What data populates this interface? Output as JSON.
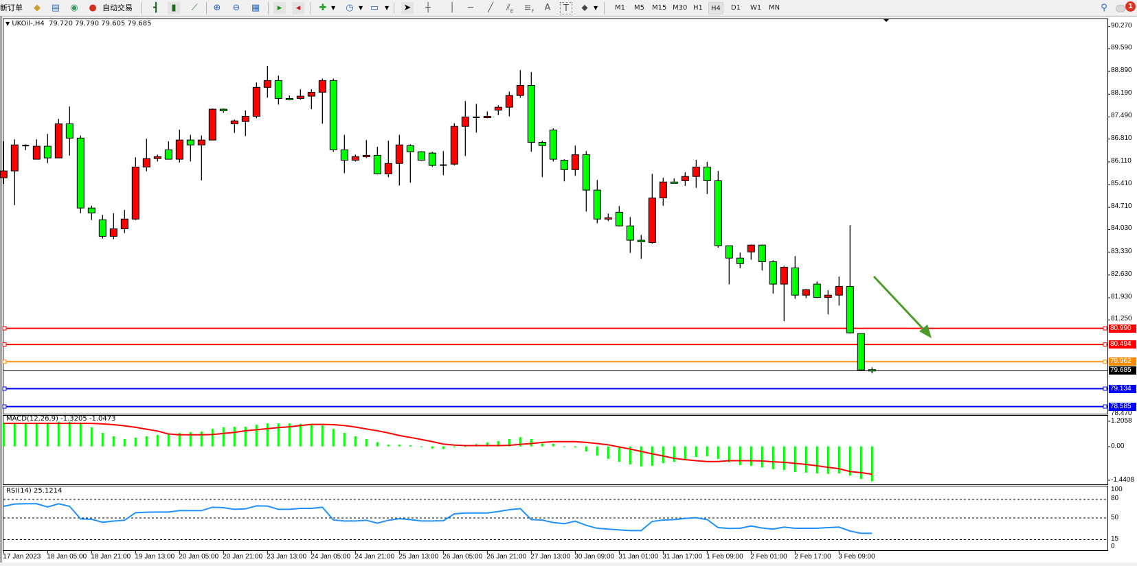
{
  "toolbar": {
    "new_order": "新订单",
    "auto_trading": "自动交易",
    "timeframes": [
      "M1",
      "M5",
      "M15",
      "M30",
      "H1",
      "H4",
      "D1",
      "W1",
      "MN"
    ],
    "active_timeframe": "H4",
    "notification_count": "1",
    "tools_text": {
      "text": "A",
      "label": "T",
      "channel_sub": "E",
      "fibo_sub": "F"
    }
  },
  "chart": {
    "symbol": "UKOil-,H4",
    "ohlc_text": "79.720 79.790 79.605 79.685",
    "bull_color": "#ff0000",
    "bear_color": "#00ff00",
    "price_axis": [
      "90.270",
      "89.590",
      "88.890",
      "88.190",
      "87.490",
      "86.810",
      "86.110",
      "85.410",
      "84.710",
      "84.030",
      "83.330",
      "82.630",
      "81.930",
      "81.250",
      "78.470"
    ],
    "hlines": [
      {
        "price": "80.990",
        "color": "#ff0000"
      },
      {
        "price": "80.494",
        "color": "#ff0000"
      },
      {
        "price": "79.962",
        "color": "#ff8c00"
      },
      {
        "price": "79.134",
        "color": "#0000ff"
      },
      {
        "price": "78.585",
        "color": "#0000ff"
      }
    ],
    "current_price": {
      "price": "79.685",
      "color": "#000000"
    },
    "arrow_color": "#4c9a2a",
    "candles": [
      [
        85.62,
        86.74,
        85.43,
        85.83
      ],
      [
        85.83,
        86.8,
        84.78,
        86.63
      ],
      [
        86.63,
        86.65,
        86.47,
        86.61
      ],
      [
        86.19,
        86.8,
        86.19,
        86.59
      ],
      [
        86.59,
        86.97,
        86.07,
        86.23
      ],
      [
        86.23,
        87.43,
        86.23,
        87.28
      ],
      [
        87.28,
        87.81,
        86.3,
        86.84
      ],
      [
        86.84,
        86.92,
        84.53,
        84.69
      ],
      [
        84.69,
        84.76,
        84.32,
        84.54
      ],
      [
        84.33,
        84.48,
        83.75,
        83.82
      ],
      [
        83.82,
        84.53,
        83.73,
        84.05
      ],
      [
        84.05,
        84.63,
        83.92,
        84.35
      ],
      [
        84.35,
        86.25,
        84.32,
        85.95
      ],
      [
        85.95,
        86.82,
        85.82,
        86.21
      ],
      [
        86.21,
        86.33,
        86.12,
        86.27
      ],
      [
        86.48,
        86.74,
        86.19,
        86.19
      ],
      [
        86.19,
        87.1,
        86.09,
        86.78
      ],
      [
        86.78,
        86.94,
        86.12,
        86.63
      ],
      [
        86.63,
        86.92,
        85.54,
        86.78
      ],
      [
        86.78,
        87.75,
        86.78,
        87.73
      ],
      [
        87.73,
        87.75,
        87.62,
        87.68
      ],
      [
        87.28,
        87.41,
        87.0,
        87.37
      ],
      [
        87.35,
        87.69,
        86.9,
        87.51
      ],
      [
        87.51,
        88.55,
        87.45,
        88.4
      ],
      [
        88.4,
        89.06,
        88.08,
        88.61
      ],
      [
        88.61,
        88.76,
        87.87,
        88.06
      ],
      [
        88.06,
        88.15,
        88.0,
        88.02
      ],
      [
        88.06,
        88.34,
        88.02,
        88.13
      ],
      [
        88.13,
        88.34,
        87.73,
        88.25
      ],
      [
        88.25,
        88.67,
        87.28,
        88.61
      ],
      [
        88.61,
        88.67,
        86.42,
        86.48
      ],
      [
        86.48,
        86.94,
        85.76,
        86.16
      ],
      [
        86.16,
        86.33,
        86.12,
        86.27
      ],
      [
        86.27,
        86.78,
        86.23,
        86.31
      ],
      [
        86.31,
        86.57,
        85.72,
        85.74
      ],
      [
        85.74,
        86.76,
        85.64,
        86.06
      ],
      [
        86.06,
        86.94,
        85.38,
        86.63
      ],
      [
        86.61,
        86.65,
        85.47,
        86.42
      ],
      [
        86.42,
        86.44,
        86.14,
        86.16
      ],
      [
        86.38,
        86.42,
        85.95,
        86.0
      ],
      [
        86.0,
        86.44,
        85.7,
        86.01
      ],
      [
        86.04,
        87.3,
        86.0,
        87.2
      ],
      [
        87.2,
        87.98,
        86.29,
        87.49
      ],
      [
        87.49,
        87.89,
        87.01,
        87.48
      ],
      [
        87.47,
        87.66,
        87.45,
        87.51
      ],
      [
        87.7,
        87.85,
        87.54,
        87.79
      ],
      [
        87.79,
        88.27,
        87.51,
        88.15
      ],
      [
        88.15,
        88.93,
        88.08,
        88.46
      ],
      [
        88.46,
        88.87,
        86.42,
        86.71
      ],
      [
        86.71,
        86.76,
        85.64,
        86.61
      ],
      [
        87.09,
        87.14,
        86.12,
        86.19
      ],
      [
        86.16,
        86.19,
        85.51,
        85.87
      ],
      [
        85.87,
        86.61,
        85.68,
        86.33
      ],
      [
        86.33,
        86.44,
        84.58,
        85.24
      ],
      [
        85.24,
        85.55,
        84.22,
        84.35
      ],
      [
        84.35,
        84.52,
        84.29,
        84.39
      ],
      [
        84.56,
        84.75,
        84.12,
        84.14
      ],
      [
        84.14,
        84.41,
        83.31,
        83.7
      ],
      [
        83.7,
        83.86,
        83.13,
        83.65
      ],
      [
        83.63,
        85.74,
        83.59,
        85.0
      ],
      [
        85.0,
        85.62,
        84.76,
        85.49
      ],
      [
        85.49,
        85.6,
        85.45,
        85.45
      ],
      [
        85.53,
        85.79,
        85.37,
        85.66
      ],
      [
        85.66,
        86.17,
        85.31,
        85.95
      ],
      [
        85.95,
        86.11,
        85.12,
        85.53
      ],
      [
        85.53,
        85.83,
        83.47,
        83.53
      ],
      [
        83.53,
        83.53,
        82.34,
        83.15
      ],
      [
        83.15,
        83.32,
        82.84,
        82.98
      ],
      [
        83.34,
        83.57,
        83.1,
        83.55
      ],
      [
        83.55,
        83.57,
        82.77,
        83.04
      ],
      [
        83.04,
        83.08,
        82.06,
        82.35
      ],
      [
        82.35,
        82.91,
        81.21,
        82.87
      ],
      [
        82.85,
        83.21,
        81.9,
        82.01
      ],
      [
        82.01,
        82.2,
        81.92,
        82.18
      ],
      [
        82.35,
        82.43,
        81.92,
        81.94
      ],
      [
        81.94,
        82.16,
        81.42,
        82.01
      ],
      [
        82.01,
        82.58,
        81.69,
        82.28
      ],
      [
        82.28,
        84.16,
        80.83,
        80.85
      ],
      [
        80.83,
        80.83,
        79.69,
        79.71
      ],
      [
        79.72,
        79.79,
        79.605,
        79.685
      ]
    ]
  },
  "macd": {
    "label": "MACD(12,26,9) -1.3205 -1.0473",
    "axis": [
      "1.2058",
      "0.00",
      "-1.4408"
    ],
    "hist_color": "#00ff00",
    "signal_color": "#ff0000",
    "histogram": [
      0.89,
      0.89,
      0.89,
      0.89,
      0.89,
      0.93,
      0.93,
      0.89,
      0.72,
      0.51,
      0.38,
      0.28,
      0.33,
      0.38,
      0.43,
      0.48,
      0.51,
      0.54,
      0.56,
      0.66,
      0.72,
      0.74,
      0.74,
      0.82,
      0.87,
      0.87,
      0.87,
      0.85,
      0.85,
      0.79,
      0.66,
      0.51,
      0.38,
      0.28,
      0.16,
      0.07,
      0.07,
      0.04,
      -0.02,
      -0.08,
      -0.1,
      -0.04,
      0,
      0.09,
      0.15,
      0.2,
      0.28,
      0.35,
      0.28,
      0.11,
      0.1,
      -0.02,
      -0.04,
      -0.19,
      -0.35,
      -0.47,
      -0.58,
      -0.68,
      -0.76,
      -0.73,
      -0.63,
      -0.58,
      -0.5,
      -0.4,
      -0.37,
      -0.47,
      -0.6,
      -0.71,
      -0.73,
      -0.79,
      -0.86,
      -0.89,
      -0.97,
      -0.99,
      -1.02,
      -1.04,
      -1.02,
      -1.1,
      -1.23,
      -1.32
    ],
    "signal": [
      0.87,
      0.87,
      0.87,
      0.87,
      0.87,
      0.87,
      0.87,
      0.87,
      0.87,
      0.85,
      0.82,
      0.78,
      0.72,
      0.65,
      0.58,
      0.47,
      0.44,
      0.44,
      0.44,
      0.45,
      0.49,
      0.53,
      0.59,
      0.63,
      0.67,
      0.71,
      0.74,
      0.79,
      0.83,
      0.83,
      0.82,
      0.79,
      0.73,
      0.66,
      0.59,
      0.51,
      0.41,
      0.34,
      0.26,
      0.18,
      0.09,
      0.05,
      0.03,
      0.03,
      0.03,
      0.03,
      0.04,
      0.08,
      0.11,
      0.15,
      0.18,
      0.18,
      0.18,
      0.15,
      0.11,
      0.06,
      -0.02,
      -0.1,
      -0.19,
      -0.28,
      -0.36,
      -0.45,
      -0.5,
      -0.54,
      -0.57,
      -0.57,
      -0.54,
      -0.54,
      -0.54,
      -0.55,
      -0.58,
      -0.6,
      -0.64,
      -0.68,
      -0.73,
      -0.79,
      -0.84,
      -0.95,
      -0.99,
      -1.05
    ]
  },
  "rsi": {
    "label": "RSI(14) 25.1214",
    "axis": [
      "100",
      "80",
      "50",
      "15",
      "0"
    ],
    "levels": [
      80,
      50,
      15
    ],
    "color": "#1e90ff",
    "values": [
      68.9,
      72.6,
      73,
      73,
      67.8,
      73,
      68.9,
      48.5,
      48,
      43,
      45,
      46.3,
      58.5,
      59.3,
      59.6,
      59.6,
      61.9,
      61.9,
      61.9,
      67.4,
      66.7,
      64,
      64.8,
      69.6,
      69.3,
      64,
      64,
      65.6,
      65.6,
      67.4,
      46.7,
      45.2,
      45.2,
      46.3,
      41.5,
      46.3,
      48.9,
      47.4,
      45.2,
      45.2,
      45.6,
      56.7,
      58.1,
      58.1,
      58.1,
      60.4,
      63.3,
      65.2,
      47.4,
      46.7,
      42.6,
      40.7,
      44.8,
      38.1,
      33.3,
      31.9,
      30.7,
      29.6,
      29.6,
      44.4,
      46.7,
      47.4,
      49.3,
      50.4,
      47.4,
      34.4,
      33,
      33.3,
      37,
      33.7,
      31.9,
      35.2,
      33.3,
      33.3,
      33.3,
      34.4,
      35.2,
      28.9,
      25.2,
      25.1
    ]
  },
  "time_axis": [
    "17 Jan 2023",
    "18 Jan 05:00",
    "18 Jan 21:00",
    "19 Jan 13:00",
    "20 Jan 05:00",
    "20 Jan 21:00",
    "23 Jan 13:00",
    "24 Jan 05:00",
    "24 Jan 21:00",
    "25 Jan 13:00",
    "26 Jan 05:00",
    "26 Jan 21:00",
    "27 Jan 13:00",
    "30 Jan 09:00",
    "31 Jan 01:00",
    "31 Jan 17:00",
    "1 Feb 09:00",
    "2 Feb 01:00",
    "2 Feb 17:00",
    "3 Feb 09:00"
  ]
}
